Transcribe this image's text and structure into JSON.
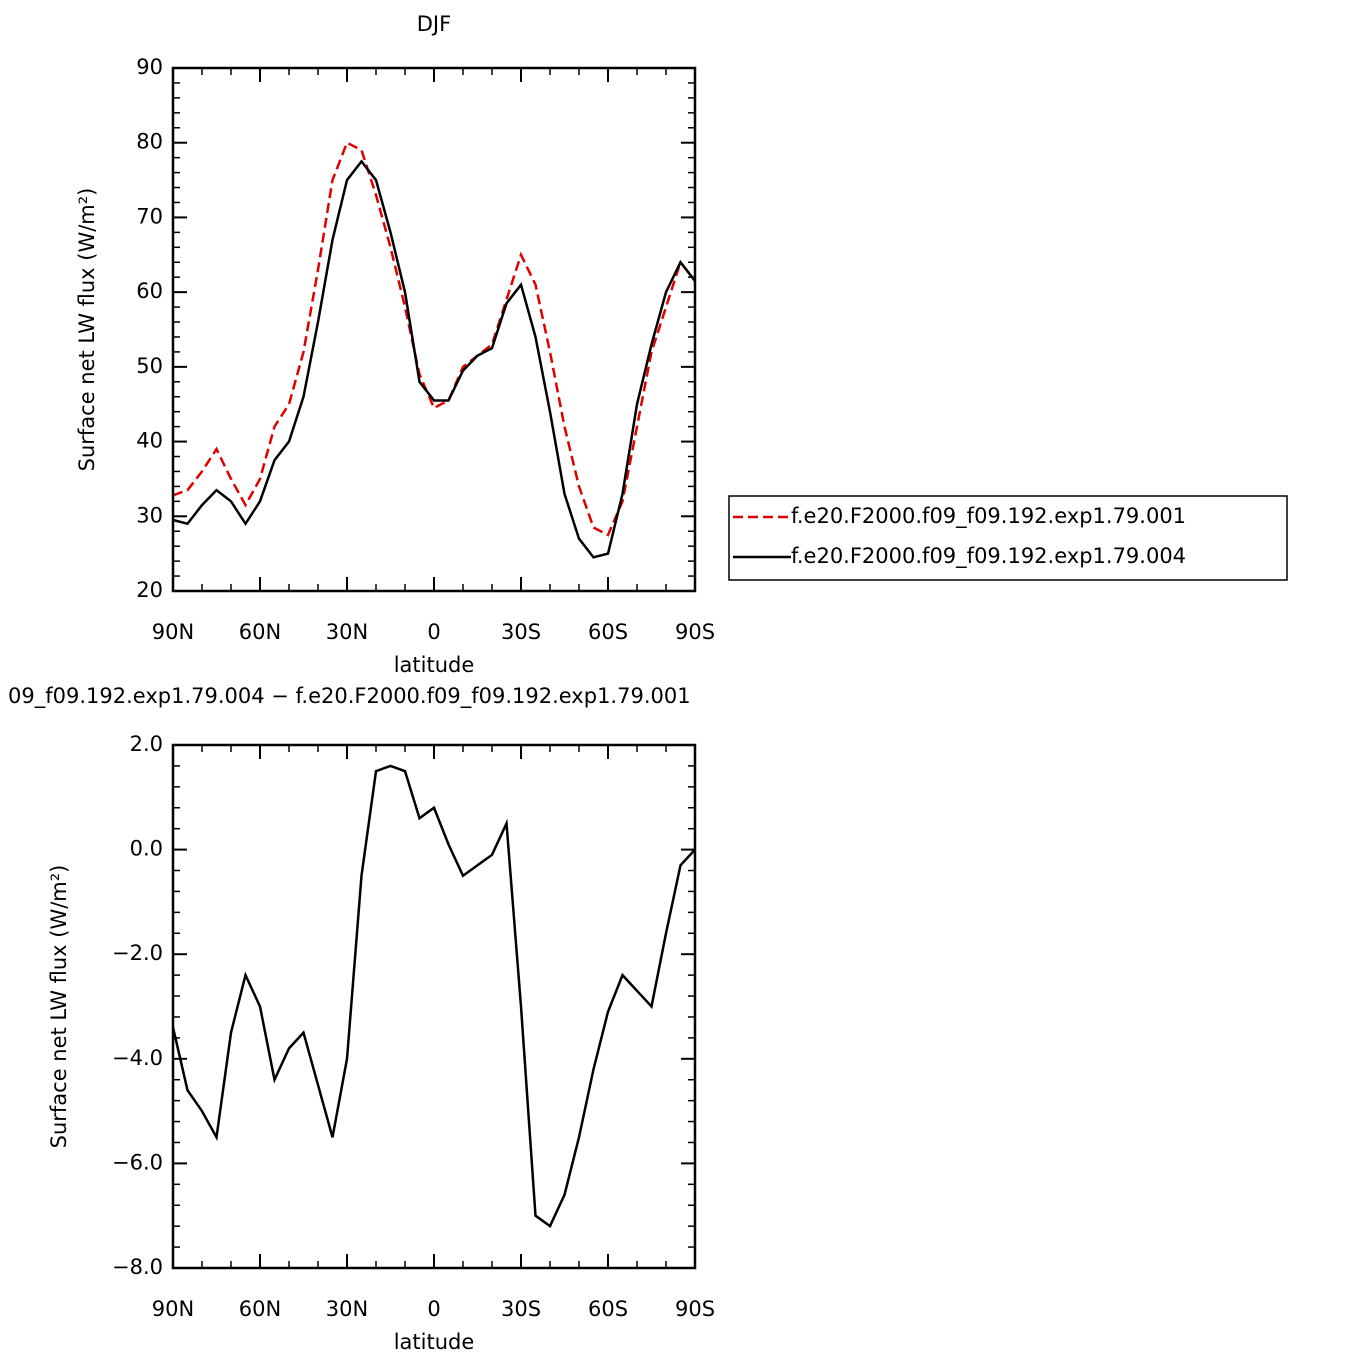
{
  "chart_data": [
    {
      "type": "line",
      "title": "DJF",
      "xlabel": "latitude",
      "ylabel": "Surface net LW flux (W/m²)",
      "x": [
        90,
        85,
        80,
        75,
        70,
        65,
        60,
        55,
        50,
        45,
        40,
        35,
        30,
        25,
        20,
        15,
        10,
        5,
        0,
        -5,
        -10,
        -15,
        -20,
        -25,
        -30,
        -35,
        -40,
        -45,
        -50,
        -55,
        -60,
        -65,
        -70,
        -75,
        -80,
        -85,
        -90
      ],
      "series": [
        {
          "name": "f.e20.F2000.f09_f09.192.exp1.79.001",
          "color": "#e00000",
          "style": "dashed",
          "values": [
            32.8,
            33.5,
            36,
            39,
            35,
            31.5,
            35,
            42,
            45,
            52,
            63,
            75,
            80,
            79,
            73,
            66,
            58,
            49,
            44.5,
            45.5,
            50,
            51.5,
            53,
            59,
            65,
            61,
            52,
            42,
            34,
            28.5,
            27.5,
            32,
            42,
            52,
            58,
            64,
            61.5
          ]
        },
        {
          "name": "f.e20.F2000.f09_f09.192.exp1.79.004",
          "color": "#000000",
          "style": "solid",
          "values": [
            29.5,
            29,
            31.5,
            33.5,
            32,
            29,
            32,
            37.5,
            40,
            46,
            56,
            67,
            75,
            77.5,
            75,
            68,
            60,
            48,
            45.5,
            45.5,
            49.5,
            51.5,
            52.5,
            58.5,
            61,
            54,
            44,
            33,
            27,
            24.5,
            25,
            33,
            45,
            53,
            60,
            64,
            61.5
          ]
        }
      ],
      "xlim": [
        90,
        -90
      ],
      "xticks": [
        {
          "value": 90,
          "label": "90N"
        },
        {
          "value": 60,
          "label": "60N"
        },
        {
          "value": 30,
          "label": "30N"
        },
        0,
        {
          "value": -30,
          "label": "30S"
        },
        {
          "value": -60,
          "label": "60S"
        },
        {
          "value": -90,
          "label": "90S"
        }
      ],
      "ylim": [
        20,
        90
      ],
      "yticks": [
        20,
        30,
        40,
        50,
        60,
        70,
        80,
        90
      ],
      "legend": "right"
    },
    {
      "type": "line",
      "title": "09_f09.192.exp1.79.004 − f.e20.F2000.f09_f09.192.exp1.79.001",
      "xlabel": "latitude",
      "ylabel": "Surface net LW flux (W/m²)",
      "x": [
        90,
        85,
        80,
        75,
        70,
        65,
        60,
        55,
        50,
        45,
        40,
        35,
        30,
        25,
        20,
        15,
        10,
        5,
        0,
        -5,
        -10,
        -15,
        -20,
        -25,
        -30,
        -35,
        -40,
        -45,
        -50,
        -55,
        -60,
        -65,
        -70,
        -75,
        -80,
        -85,
        -90
      ],
      "series": [
        {
          "color": "#000000",
          "style": "solid",
          "values": [
            -3.4,
            -4.6,
            -5.0,
            -5.5,
            -3.5,
            -2.4,
            -3.0,
            -4.4,
            -3.8,
            -3.5,
            -4.5,
            -5.5,
            -4.0,
            -0.5,
            1.5,
            1.6,
            1.5,
            0.6,
            0.8,
            0.1,
            -0.5,
            -0.3,
            -0.1,
            0.5,
            -3.0,
            -7.0,
            -7.2,
            -6.6,
            -5.5,
            -4.2,
            -3.1,
            -2.4,
            -2.7,
            -3.0,
            -1.6,
            -0.3,
            0.0
          ]
        }
      ],
      "xlim": [
        90,
        -90
      ],
      "xticks": [
        {
          "value": 90,
          "label": "90N"
        },
        {
          "value": 60,
          "label": "60N"
        },
        {
          "value": 30,
          "label": "30N"
        },
        0,
        {
          "value": -30,
          "label": "30S"
        },
        {
          "value": -60,
          "label": "60S"
        },
        {
          "value": -90,
          "label": "90S"
        }
      ],
      "ylim": [
        -8,
        2
      ],
      "yticks": [
        {
          "value": -8,
          "label": "−8.0"
        },
        {
          "value": -6,
          "label": "−6.0"
        },
        {
          "value": -4,
          "label": "−4.0"
        },
        {
          "value": -2,
          "label": "−2.0"
        },
        {
          "value": 0,
          "label": "0.0"
        },
        {
          "value": 2,
          "label": "2.0"
        }
      ]
    }
  ]
}
